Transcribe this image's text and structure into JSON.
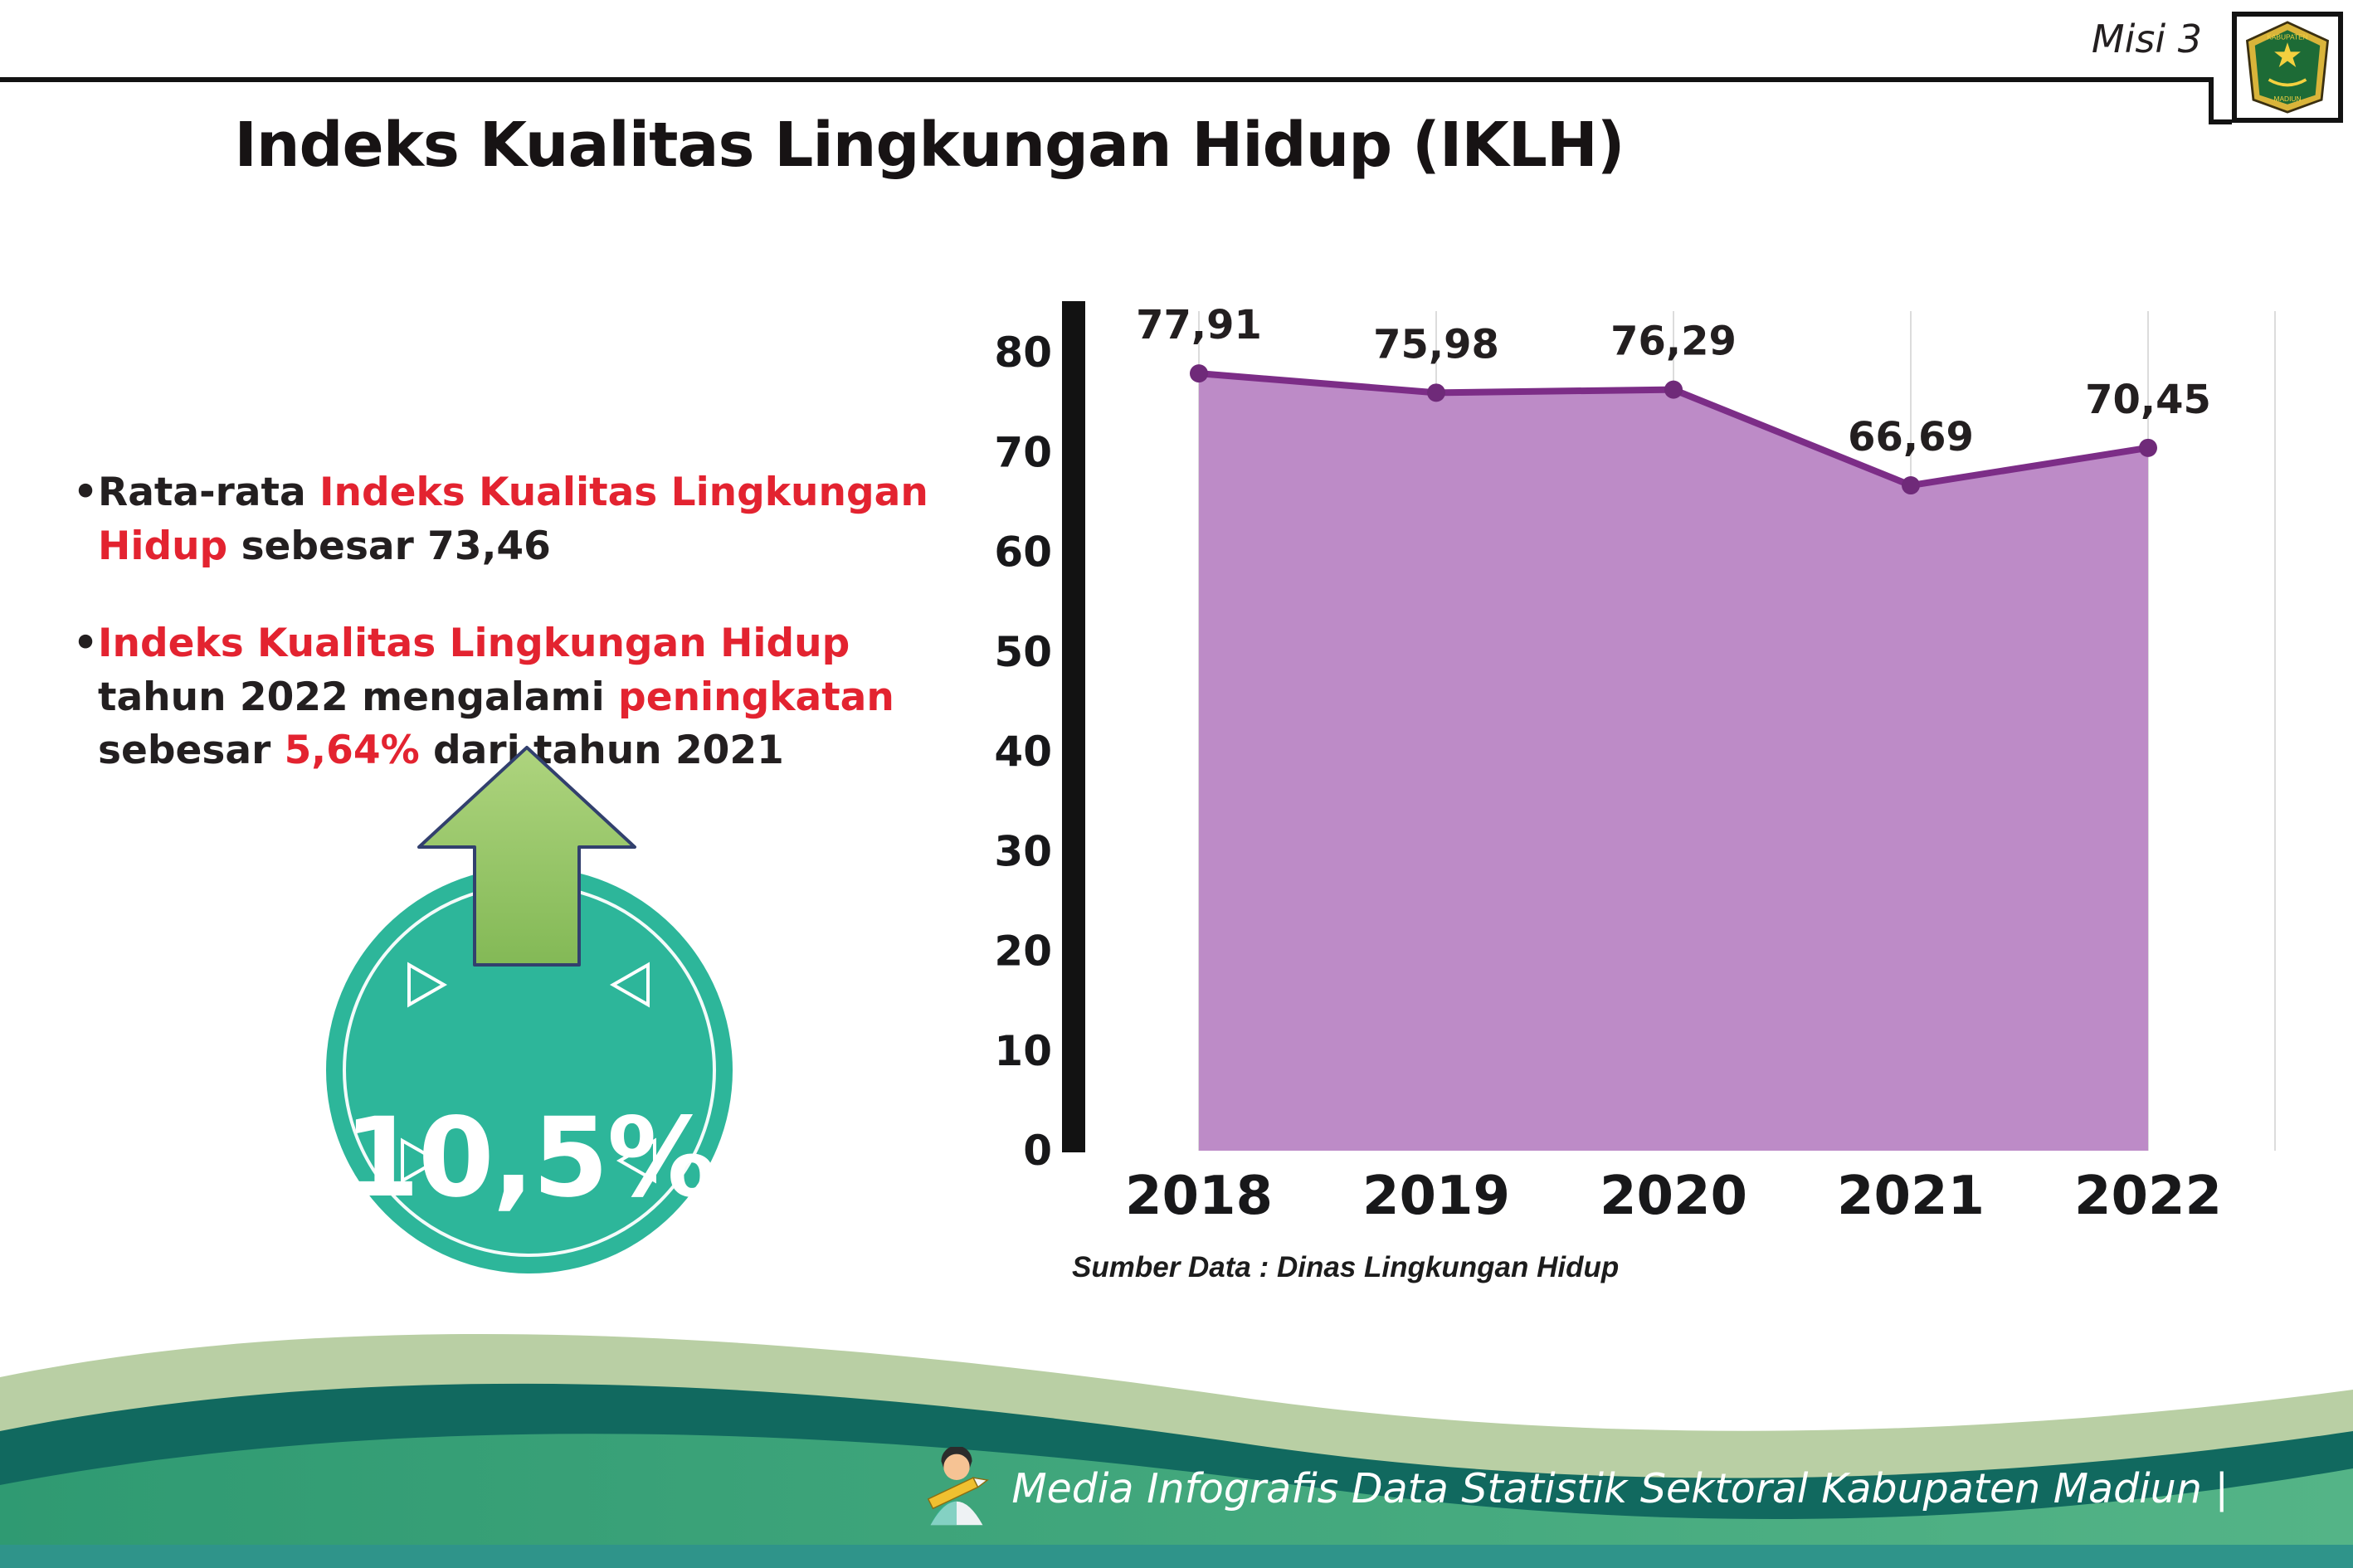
{
  "page": {
    "bullet_char": "•"
  },
  "header": {
    "misi": "Misi 3",
    "title": "Indeks Kualitas Lingkungan Hidup (IKLH)",
    "logo": {
      "top": "KABUPATEN",
      "bottom": "MADIUN"
    }
  },
  "bullets": [
    {
      "segments": [
        {
          "text": "Rata-rata ",
          "color": "dark"
        },
        {
          "text": "Indeks Kualitas Lingkungan Hidup",
          "color": "red"
        },
        {
          "text": " sebesar 73,46",
          "color": "dark"
        }
      ]
    },
    {
      "segments": [
        {
          "text": "Indeks Kualitas Lingkungan Hidup",
          "color": "red"
        },
        {
          "text": " tahun 2022 mengalami ",
          "color": "dark"
        },
        {
          "text": "peningkatan",
          "color": "red"
        },
        {
          "text": " sebesar ",
          "color": "dark"
        },
        {
          "text": "5,64%",
          "color": "red"
        },
        {
          "text": " dari tahun 2021",
          "color": "dark"
        }
      ]
    }
  ],
  "badge": {
    "value": "10,5%"
  },
  "chart_data": {
    "type": "area",
    "title": "Indeks Kualitas Lingkungan Hidup (IKLH)",
    "categories": [
      "2018",
      "2019",
      "2020",
      "2021",
      "2022"
    ],
    "values": [
      77.91,
      75.98,
      76.29,
      66.69,
      70.45
    ],
    "point_labels": [
      "77,91",
      "75,98",
      "76,29",
      "66,69",
      "70,45"
    ],
    "xlabel": "",
    "ylabel": "",
    "ylim": [
      0,
      80
    ],
    "yticks": [
      0,
      10,
      20,
      30,
      40,
      50,
      60,
      70,
      80
    ],
    "grid": "vertical",
    "legend": "none",
    "source": "Sumber Data : Dinas Lingkungan Hidup",
    "colors": {
      "fill": "#bd8bc7",
      "line": "#7c2d87",
      "marker": "#6f2a79"
    }
  },
  "footer": {
    "credit": "Media Infografis Data Statistik Sektoral Kabupaten Madiun |"
  },
  "colors": {
    "red": "#e32330",
    "text": "#231f20",
    "teal_badge": "#2db69a",
    "arrow_green": "#9cc86b",
    "wave_sage": "#b9cfa4",
    "wave_dark_teal": "#11695f",
    "wave_green": "#3fa878"
  }
}
